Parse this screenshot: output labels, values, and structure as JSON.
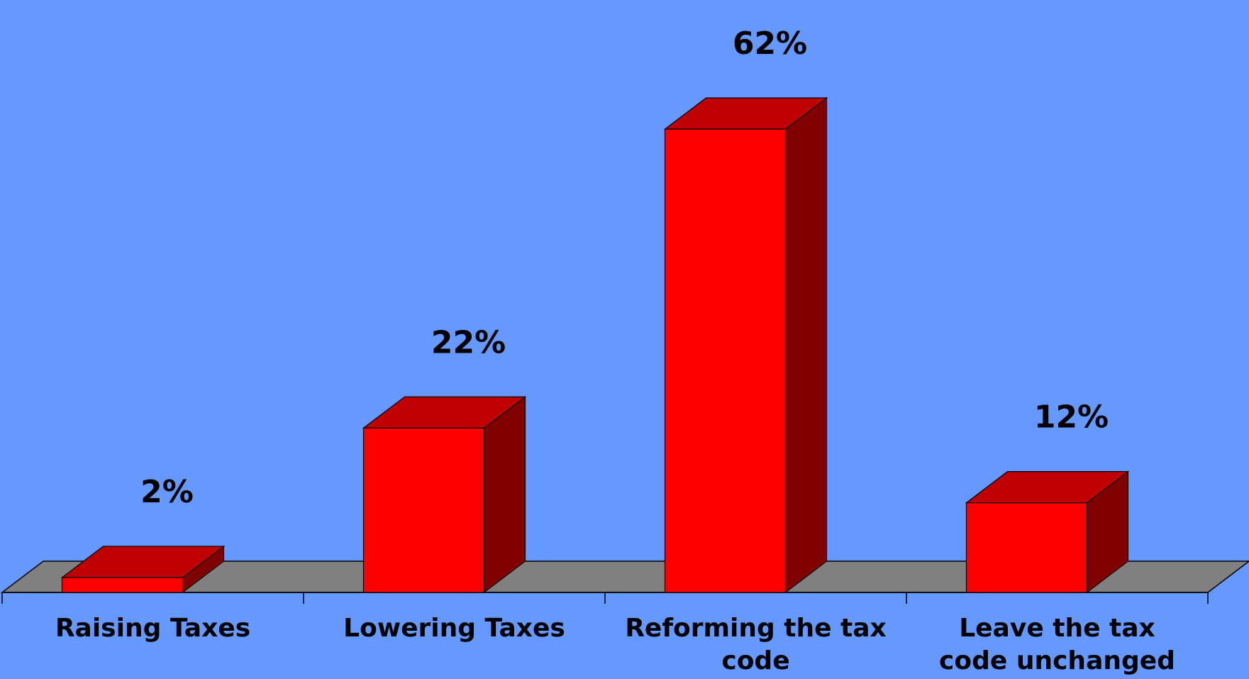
{
  "chart_data": {
    "type": "bar",
    "style": "3d-column",
    "categories": [
      [
        "Raising Taxes"
      ],
      [
        "Lowering Taxes"
      ],
      [
        "Reforming the tax",
        "code"
      ],
      [
        "Leave the tax",
        "code unchanged"
      ]
    ],
    "values": [
      2,
      22,
      62,
      12
    ],
    "data_labels": [
      "2%",
      "22%",
      "62%",
      "12%"
    ],
    "title": "",
    "xlabel": "",
    "ylabel": "",
    "ylim": [
      0,
      62
    ],
    "grid": false,
    "legend": "none"
  },
  "colors": {
    "background": "#6699ff",
    "bar_front": "#ff0000",
    "bar_top": "#c00000",
    "bar_side": "#800000",
    "floor": "#808080",
    "outline": "#000000"
  }
}
